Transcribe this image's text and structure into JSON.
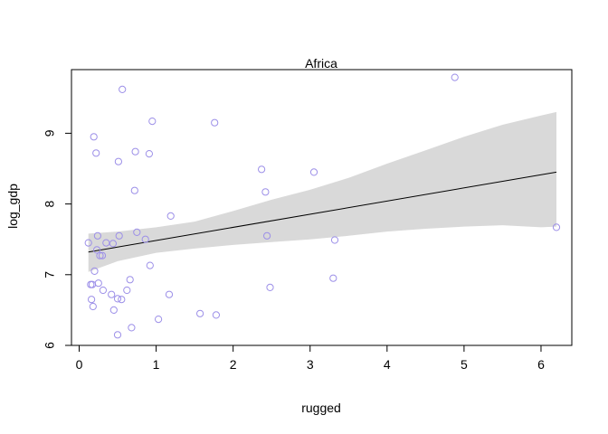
{
  "chart_data": {
    "type": "scatter",
    "title": "Africa",
    "xlabel": "rugged",
    "ylabel": "log_gdp",
    "xlim": [
      -0.1,
      6.4
    ],
    "ylim": [
      6.0,
      9.9
    ],
    "x_ticks": [
      0,
      1,
      2,
      3,
      4,
      5,
      6
    ],
    "y_ticks": [
      6,
      7,
      8,
      9
    ],
    "grid": false,
    "legend": "none",
    "colors": {
      "points": "#9c8fe8",
      "band": "#d9d9d9",
      "line": "#000000",
      "axis": "#000000"
    },
    "points": [
      [
        0.12,
        7.45
      ],
      [
        0.15,
        6.86
      ],
      [
        0.16,
        6.65
      ],
      [
        0.17,
        6.86
      ],
      [
        0.18,
        6.55
      ],
      [
        0.19,
        8.95
      ],
      [
        0.2,
        7.05
      ],
      [
        0.22,
        8.72
      ],
      [
        0.23,
        7.35
      ],
      [
        0.24,
        7.55
      ],
      [
        0.25,
        6.88
      ],
      [
        0.27,
        7.27
      ],
      [
        0.3,
        7.27
      ],
      [
        0.31,
        6.78
      ],
      [
        0.35,
        7.45
      ],
      [
        0.42,
        6.72
      ],
      [
        0.44,
        7.44
      ],
      [
        0.45,
        6.5
      ],
      [
        0.5,
        6.66
      ],
      [
        0.5,
        6.15
      ],
      [
        0.51,
        8.6
      ],
      [
        0.52,
        7.55
      ],
      [
        0.55,
        6.65
      ],
      [
        0.56,
        9.62
      ],
      [
        0.62,
        6.78
      ],
      [
        0.66,
        6.93
      ],
      [
        0.68,
        6.25
      ],
      [
        0.72,
        8.19
      ],
      [
        0.73,
        8.74
      ],
      [
        0.75,
        7.6
      ],
      [
        0.86,
        7.5
      ],
      [
        0.91,
        8.71
      ],
      [
        0.92,
        7.13
      ],
      [
        0.95,
        9.17
      ],
      [
        1.03,
        6.37
      ],
      [
        1.17,
        6.72
      ],
      [
        1.19,
        7.83
      ],
      [
        1.57,
        6.45
      ],
      [
        1.76,
        9.15
      ],
      [
        1.78,
        6.43
      ],
      [
        2.37,
        8.49
      ],
      [
        2.42,
        8.17
      ],
      [
        2.44,
        7.55
      ],
      [
        2.48,
        6.82
      ],
      [
        3.05,
        8.45
      ],
      [
        3.3,
        6.95
      ],
      [
        3.32,
        7.49
      ],
      [
        4.88,
        9.79
      ],
      [
        6.2,
        7.67
      ]
    ],
    "fit_line": [
      [
        0.12,
        7.32
      ],
      [
        6.2,
        8.45
      ]
    ],
    "interval": {
      "x": [
        0.12,
        0.5,
        1.0,
        1.5,
        2.0,
        2.5,
        3.0,
        3.5,
        4.0,
        4.5,
        5.0,
        5.5,
        6.0,
        6.2
      ],
      "upper": [
        7.58,
        7.61,
        7.67,
        7.75,
        7.9,
        8.06,
        8.2,
        8.37,
        8.57,
        8.76,
        8.95,
        9.12,
        9.25,
        9.3
      ],
      "lower": [
        7.04,
        7.19,
        7.31,
        7.37,
        7.42,
        7.46,
        7.5,
        7.55,
        7.61,
        7.65,
        7.68,
        7.7,
        7.67,
        7.68
      ]
    }
  }
}
